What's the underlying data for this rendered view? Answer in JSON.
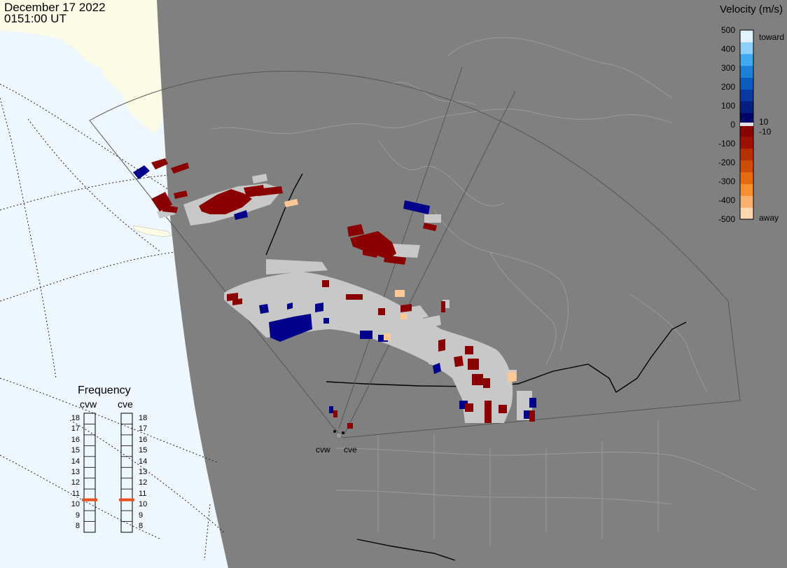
{
  "timestamp": {
    "date": "December 17 2022",
    "time": "0151:00 UT"
  },
  "colors": {
    "ocean": "#eef7fd",
    "arctic_land": "#fcfbe6",
    "earth_shadow": "#808080",
    "boundaries": "#9a9a9a",
    "ground_scatter": "#c8c8c8",
    "frequency_marker": "#e8501e"
  },
  "legend": {
    "title": "Velocity (m/s)",
    "toward_label": "toward",
    "away_label": "away",
    "ticks": [
      "500",
      "400",
      "300",
      "200",
      "100",
      "0",
      "-100",
      "-200",
      "-300",
      "-400",
      "-500"
    ],
    "side_ticks": [
      "10",
      "-10"
    ],
    "color_stops": [
      "#e0f4ff",
      "#8fd0fb",
      "#3ea8f0",
      "#1e7fd8",
      "#0c5cc0",
      "#0838a0",
      "#041f80",
      "#00006a",
      "#8a0000",
      "#a01000",
      "#b83000",
      "#d04a08",
      "#e86a10",
      "#f89030",
      "#fcb070",
      "#ffd8b0"
    ]
  },
  "frequency": {
    "title": "Frequency",
    "radars": [
      {
        "name": "cvw",
        "value_mhz": 10.5
      },
      {
        "name": "cve",
        "value_mhz": 10.5
      }
    ],
    "scale": [
      "18",
      "17",
      "16",
      "15",
      "14",
      "13",
      "12",
      "11",
      "10",
      "9",
      "8"
    ]
  },
  "sites": [
    {
      "code": "cvw"
    },
    {
      "code": "cve"
    }
  ],
  "icons": [
    "radar-site-marker-icon"
  ]
}
